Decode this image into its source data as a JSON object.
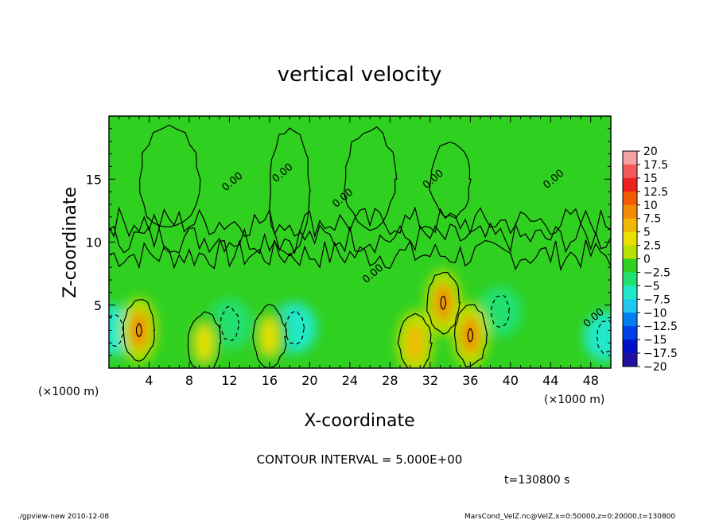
{
  "chart_data": {
    "type": "heatmap",
    "title": "vertical velocity",
    "xlabel": "X-coordinate",
    "ylabel": "Z-coordinate",
    "x_unit_left": "(×1000 m)",
    "x_unit_right": "(×1000 m)",
    "xlim": [
      0,
      50
    ],
    "ylim": [
      0,
      20
    ],
    "x_ticks": [
      4,
      8,
      12,
      16,
      20,
      24,
      28,
      32,
      36,
      40,
      44,
      48
    ],
    "y_ticks": [
      5,
      10,
      15
    ],
    "colorbar": {
      "levels": [
        20,
        17.5,
        15,
        12.5,
        10,
        7.5,
        5,
        2.5,
        0,
        -2.5,
        -5,
        -7.5,
        -10,
        -12.5,
        -15,
        -17.5,
        -20
      ],
      "colors": [
        "#f4a3a3",
        "#f25a5a",
        "#ee2020",
        "#f45a00",
        "#f38a00",
        "#f0b800",
        "#e8e000",
        "#b8e000",
        "#30d020",
        "#20e070",
        "#20e8c8",
        "#20c8f0",
        "#0080f0",
        "#0040e8",
        "#0010c8",
        "#2010a0",
        "#6a00b0"
      ]
    },
    "contour_label": "0.00",
    "contour_interval": "CONTOUR INTERVAL = 5.000E+00",
    "time": "t=130800 s",
    "updrafts": [
      {
        "x": 3.0,
        "z": 3.0,
        "peak": 10
      },
      {
        "x": 30.5,
        "z": 2.0,
        "peak": 7.5
      },
      {
        "x": 33.3,
        "z": 5.2,
        "peak": 10
      },
      {
        "x": 36.0,
        "z": 2.6,
        "peak": 10
      },
      {
        "x": 9.5,
        "z": 2.0,
        "peak": 5
      },
      {
        "x": 16.0,
        "z": 2.5,
        "peak": 5
      }
    ],
    "downdrafts": [
      {
        "x": 0.5,
        "z": 3.0,
        "peak": -5
      },
      {
        "x": 18.5,
        "z": 3.2,
        "peak": -5
      },
      {
        "x": 12.0,
        "z": 3.5,
        "peak": -2.5
      },
      {
        "x": 39.0,
        "z": 4.5,
        "peak": -2.5
      },
      {
        "x": 49.5,
        "z": 2.5,
        "peak": -5
      }
    ]
  },
  "footer": {
    "left": "./gpview-new  2010-12-08",
    "right": "MarsCond_VelZ.nc@VelZ,x=0:50000,z=0:20000,t=130800"
  }
}
